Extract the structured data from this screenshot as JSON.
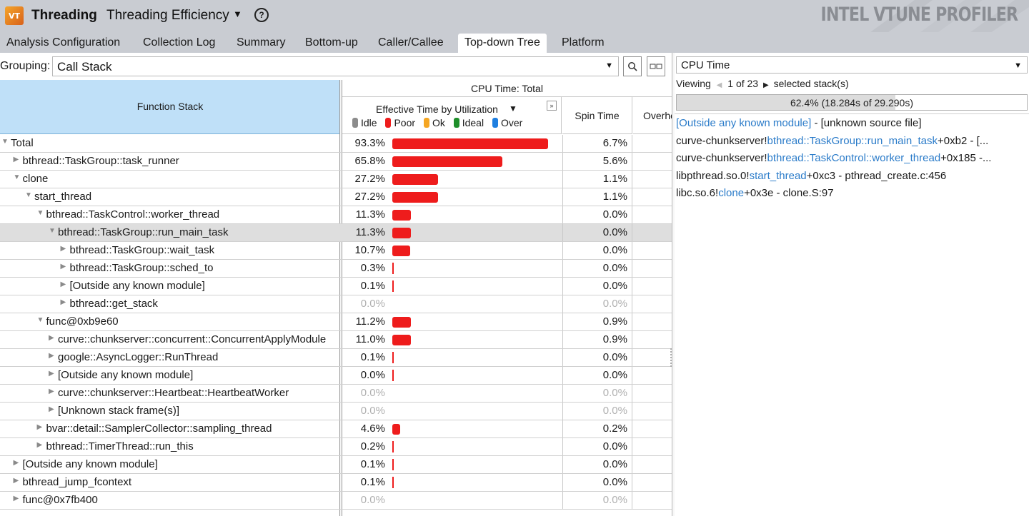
{
  "app": {
    "logo_text": "VT",
    "title": "Threading",
    "analysis_type": "Threading Efficiency",
    "dropdown_glyph": "▼",
    "help_glyph": "?",
    "brand": "INTEL VTUNE PROFILER"
  },
  "tabs": [
    {
      "label": "Analysis Configuration"
    },
    {
      "label": "Collection Log"
    },
    {
      "label": "Summary"
    },
    {
      "label": "Bottom-up"
    },
    {
      "label": "Caller/Callee"
    },
    {
      "label": "Top-down Tree",
      "active": true
    },
    {
      "label": "Platform"
    }
  ],
  "grouping": {
    "label": "Grouping:",
    "value": "Call Stack",
    "arrow": "▼",
    "search_glyph": "⌕",
    "toggle_glyph": "▭▭"
  },
  "grid": {
    "function_stack_header": "Function Stack",
    "cpu_time_header": "CPU Time: Total",
    "eff_header": "Effective Time by Utilization",
    "eff_sort_glyph": "▼",
    "expand_glyph": "»",
    "spin_header": "Spin Time",
    "over_header": "Overhead Time",
    "legend": [
      {
        "label": "Idle",
        "color": "#8c8c8c"
      },
      {
        "label": "Poor",
        "color": "#ee1c1c"
      },
      {
        "label": "Ok",
        "color": "#f5a623"
      },
      {
        "label": "Ideal",
        "color": "#1e8f2a"
      },
      {
        "label": "Over",
        "color": "#1f7fe0"
      }
    ]
  },
  "rows": [
    {
      "level": 0,
      "twisty": "▼",
      "name": "Total",
      "pct": "93.3%",
      "value": 93.3,
      "spin": "6.7%"
    },
    {
      "level": 1,
      "twisty": "▶",
      "name": "bthread::TaskGroup::task_runner",
      "pct": "65.8%",
      "value": 65.8,
      "spin": "5.6%"
    },
    {
      "level": 1,
      "twisty": "▼",
      "name": "clone",
      "pct": "27.2%",
      "value": 27.2,
      "spin": "1.1%"
    },
    {
      "level": 2,
      "twisty": "▼",
      "name": "start_thread",
      "pct": "27.2%",
      "value": 27.2,
      "spin": "1.1%"
    },
    {
      "level": 3,
      "twisty": "▼",
      "name": "bthread::TaskControl::worker_thread",
      "pct": "11.3%",
      "value": 11.3,
      "spin": "0.0%"
    },
    {
      "level": 4,
      "twisty": "▼",
      "name": "bthread::TaskGroup::run_main_task",
      "pct": "11.3%",
      "value": 11.3,
      "spin": "0.0%",
      "selected": true
    },
    {
      "level": 5,
      "twisty": "▶",
      "name": "bthread::TaskGroup::wait_task",
      "pct": "10.7%",
      "value": 10.7,
      "spin": "0.0%"
    },
    {
      "level": 5,
      "twisty": "▶",
      "name": "bthread::TaskGroup::sched_to",
      "pct": "0.3%",
      "value": 0.3,
      "spin": "0.0%"
    },
    {
      "level": 5,
      "twisty": "▶",
      "name": "[Outside any known module]",
      "pct": "0.1%",
      "value": 0.1,
      "spin": "0.0%"
    },
    {
      "level": 5,
      "twisty": "▶",
      "name": "bthread::get_stack",
      "pct": "0.0%",
      "value": 0.0,
      "spin": "0.0%",
      "zero": true
    },
    {
      "level": 3,
      "twisty": "▼",
      "name": "func@0xb9e60",
      "pct": "11.2%",
      "value": 11.2,
      "spin": "0.9%"
    },
    {
      "level": 4,
      "twisty": "▶",
      "name": "curve::chunkserver::concurrent::ConcurrentApplyModule",
      "pct": "11.0%",
      "value": 11.0,
      "spin": "0.9%"
    },
    {
      "level": 4,
      "twisty": "▶",
      "name": "google::AsyncLogger::RunThread",
      "pct": "0.1%",
      "value": 0.1,
      "spin": "0.0%"
    },
    {
      "level": 4,
      "twisty": "▶",
      "name": "[Outside any known module]",
      "pct": "0.0%",
      "value": 0.0,
      "spin": "0.0%",
      "tick": true
    },
    {
      "level": 4,
      "twisty": "▶",
      "name": "curve::chunkserver::Heartbeat::HeartbeatWorker",
      "pct": "0.0%",
      "value": 0.0,
      "spin": "0.0%",
      "zero": true
    },
    {
      "level": 4,
      "twisty": "▶",
      "name": "[Unknown stack frame(s)]",
      "pct": "0.0%",
      "value": 0.0,
      "spin": "0.0%",
      "zero": true
    },
    {
      "level": 3,
      "twisty": "▶",
      "name": "bvar::detail::SamplerCollector::sampling_thread",
      "pct": "4.6%",
      "value": 4.6,
      "spin": "0.2%"
    },
    {
      "level": 3,
      "twisty": "▶",
      "name": "bthread::TimerThread::run_this",
      "pct": "0.2%",
      "value": 0.2,
      "spin": "0.0%"
    },
    {
      "level": 1,
      "twisty": "▶",
      "name": "[Outside any known module]",
      "pct": "0.1%",
      "value": 0.1,
      "spin": "0.0%"
    },
    {
      "level": 1,
      "twisty": "▶",
      "name": "bthread_jump_fcontext",
      "pct": "0.1%",
      "value": 0.1,
      "spin": "0.0%"
    },
    {
      "level": 1,
      "twisty": "▶",
      "name": "func@0x7fb400",
      "pct": "0.0%",
      "value": 0.0,
      "spin": "0.0%",
      "zero": true
    }
  ],
  "right_panel": {
    "select_value": "CPU Time",
    "select_arrow": "▼",
    "viewing_label": "Viewing",
    "prev_glyph": "◀",
    "counter": "1 of 23",
    "next_glyph": "▶",
    "selected_label": "selected stack(s)",
    "progress_text": "62.4% (18.284s of 29.290s)",
    "progress_value": 0.624,
    "stack": [
      {
        "parts": [
          {
            "t": "[Outside any known module]",
            "link": true
          },
          {
            "t": " - [unknown source file]"
          }
        ]
      },
      {
        "parts": [
          {
            "t": "curve-chunkserver!"
          },
          {
            "t": "bthread::TaskGroup::run_main_task",
            "link": true
          },
          {
            "t": "+0xb2 - [..."
          }
        ]
      },
      {
        "parts": [
          {
            "t": "curve-chunkserver!"
          },
          {
            "t": "bthread::TaskControl::worker_thread",
            "link": true
          },
          {
            "t": "+0x185 -..."
          }
        ]
      },
      {
        "parts": [
          {
            "t": "libpthread.so.0!"
          },
          {
            "t": "start_thread",
            "link": true
          },
          {
            "t": "+0xc3 - pthread_create.c:456"
          }
        ]
      },
      {
        "parts": [
          {
            "t": "libc.so.6!"
          },
          {
            "t": "clone",
            "link": true
          },
          {
            "t": "+0x3e - clone.S:97"
          }
        ]
      }
    ]
  }
}
